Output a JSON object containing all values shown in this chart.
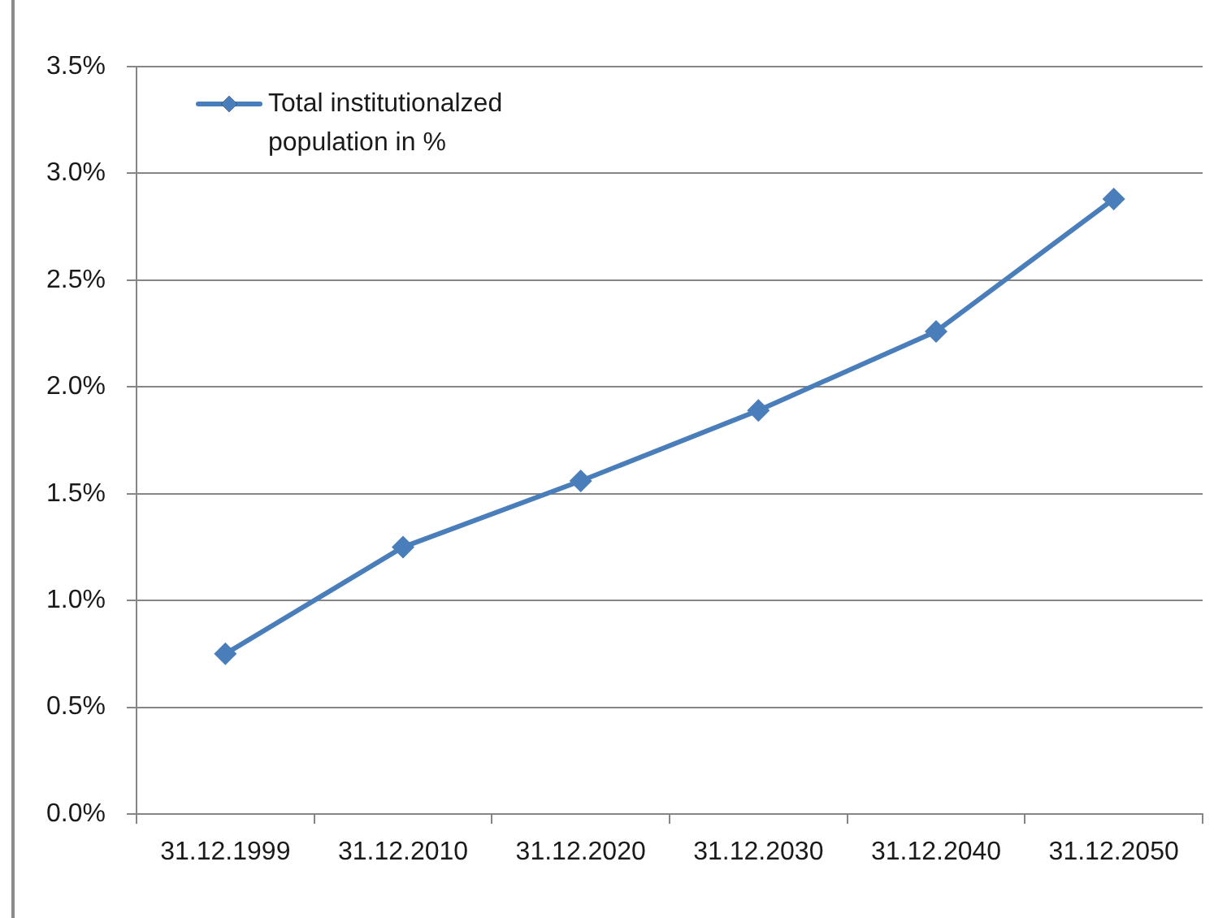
{
  "chart_data": {
    "type": "line",
    "categories": [
      "31.12.1999",
      "31.12.2010",
      "31.12.2020",
      "31.12.2030",
      "31.12.2040",
      "31.12.2050"
    ],
    "series": [
      {
        "name": "Total institutionalzed population in %",
        "color": "#4a7ebb",
        "values": [
          0.75,
          1.25,
          1.56,
          1.89,
          2.26,
          2.88
        ]
      }
    ],
    "ylim": [
      0,
      3.5
    ],
    "yticks": [
      {
        "value": 0,
        "label": "0.0%"
      },
      {
        "value": 0.5,
        "label": "0.5%"
      },
      {
        "value": 1,
        "label": "1.0%"
      },
      {
        "value": 1.5,
        "label": "1.5%"
      },
      {
        "value": 2,
        "label": "2.0%"
      },
      {
        "value": 2.5,
        "label": "2.5%"
      },
      {
        "value": 3,
        "label": "3.0%"
      },
      {
        "value": 3.5,
        "label": "3.5%"
      }
    ],
    "grid": "y",
    "legend": "top left",
    "marker": "diamond",
    "line_style": "solid"
  }
}
